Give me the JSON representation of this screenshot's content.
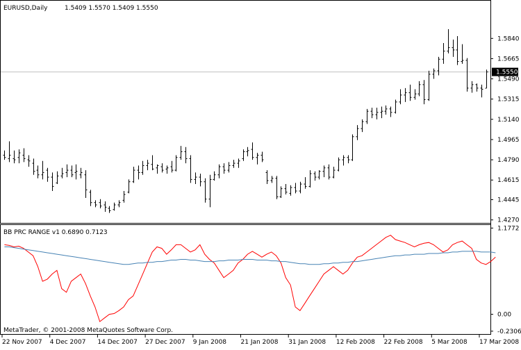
{
  "header": {
    "symbol_label": "EURUSD,Daily",
    "ohlc_values": "1.5409 1.5570 1.5409 1.5550"
  },
  "indicator": {
    "label": "BB PRC RANGE v1 0.6890 0.7123"
  },
  "footer": {
    "copyright": "MetaTrader, © 2001-2008 MetaQuotes Software Corp."
  },
  "colors": {
    "background": "#ffffff",
    "bars": "#000000",
    "grid_line": "#c0c0c0",
    "indicator_main": "#ff0000",
    "indicator_signal": "#4682b4",
    "current_price_bg": "#000000",
    "current_price_text": "#ffffff"
  },
  "chart_data": [
    {
      "type": "ohlc",
      "symbol": "EURUSD",
      "timeframe": "Daily",
      "current_price": 1.555,
      "ylim": [
        1.425,
        1.61
      ],
      "yticks": [
        "1.5840",
        "1.5665",
        "1.5490",
        "1.5315",
        "1.5140",
        "1.4965",
        "1.4790",
        "1.4615",
        "1.4445",
        "1.4270"
      ],
      "xticks": [
        "22 Nov 2007",
        "4 Dec 2007",
        "14 Dec 2007",
        "27 Dec 2007",
        "9 Jan 2008",
        "21 Jan 2008",
        "31 Jan 2008",
        "12 Feb 2008",
        "22 Feb 2008",
        "5 Mar 2008",
        "17 Mar 2008"
      ],
      "bars": [
        {
          "o": 1.483,
          "h": 1.487,
          "l": 1.479,
          "c": 1.481
        },
        {
          "o": 1.48,
          "h": 1.495,
          "l": 1.477,
          "c": 1.483
        },
        {
          "o": 1.48,
          "h": 1.487,
          "l": 1.476,
          "c": 1.479
        },
        {
          "o": 1.481,
          "h": 1.488,
          "l": 1.476,
          "c": 1.485
        },
        {
          "o": 1.483,
          "h": 1.489,
          "l": 1.477,
          "c": 1.48
        },
        {
          "o": 1.479,
          "h": 1.483,
          "l": 1.473,
          "c": 1.478
        },
        {
          "o": 1.476,
          "h": 1.48,
          "l": 1.466,
          "c": 1.469
        },
        {
          "o": 1.47,
          "h": 1.474,
          "l": 1.463,
          "c": 1.466
        },
        {
          "o": 1.466,
          "h": 1.478,
          "l": 1.462,
          "c": 1.468
        },
        {
          "o": 1.47,
          "h": 1.472,
          "l": 1.46,
          "c": 1.464
        },
        {
          "o": 1.464,
          "h": 1.468,
          "l": 1.452,
          "c": 1.456
        },
        {
          "o": 1.459,
          "h": 1.469,
          "l": 1.458,
          "c": 1.465
        },
        {
          "o": 1.465,
          "h": 1.472,
          "l": 1.463,
          "c": 1.467
        },
        {
          "o": 1.468,
          "h": 1.475,
          "l": 1.464,
          "c": 1.47
        },
        {
          "o": 1.47,
          "h": 1.474,
          "l": 1.464,
          "c": 1.466
        },
        {
          "o": 1.468,
          "h": 1.475,
          "l": 1.462,
          "c": 1.469
        },
        {
          "o": 1.466,
          "h": 1.472,
          "l": 1.463,
          "c": 1.468
        },
        {
          "o": 1.466,
          "h": 1.47,
          "l": 1.446,
          "c": 1.453
        },
        {
          "o": 1.451,
          "h": 1.453,
          "l": 1.439,
          "c": 1.442
        },
        {
          "o": 1.442,
          "h": 1.444,
          "l": 1.438,
          "c": 1.44
        },
        {
          "o": 1.442,
          "h": 1.445,
          "l": 1.437,
          "c": 1.439
        },
        {
          "o": 1.44,
          "h": 1.443,
          "l": 1.434,
          "c": 1.438
        },
        {
          "o": 1.437,
          "h": 1.439,
          "l": 1.433,
          "c": 1.435
        },
        {
          "o": 1.436,
          "h": 1.442,
          "l": 1.435,
          "c": 1.44
        },
        {
          "o": 1.44,
          "h": 1.444,
          "l": 1.438,
          "c": 1.442
        },
        {
          "o": 1.444,
          "h": 1.452,
          "l": 1.442,
          "c": 1.449
        },
        {
          "o": 1.451,
          "h": 1.462,
          "l": 1.45,
          "c": 1.46
        },
        {
          "o": 1.46,
          "h": 1.473,
          "l": 1.459,
          "c": 1.47
        },
        {
          "o": 1.47,
          "h": 1.474,
          "l": 1.462,
          "c": 1.468
        },
        {
          "o": 1.468,
          "h": 1.478,
          "l": 1.466,
          "c": 1.474
        },
        {
          "o": 1.474,
          "h": 1.479,
          "l": 1.47,
          "c": 1.476
        },
        {
          "o": 1.475,
          "h": 1.483,
          "l": 1.47,
          "c": 1.471
        },
        {
          "o": 1.472,
          "h": 1.475,
          "l": 1.467,
          "c": 1.474
        },
        {
          "o": 1.473,
          "h": 1.476,
          "l": 1.468,
          "c": 1.47
        },
        {
          "o": 1.471,
          "h": 1.474,
          "l": 1.467,
          "c": 1.472
        },
        {
          "o": 1.473,
          "h": 1.478,
          "l": 1.468,
          "c": 1.47
        },
        {
          "o": 1.47,
          "h": 1.483,
          "l": 1.469,
          "c": 1.481
        },
        {
          "o": 1.481,
          "h": 1.491,
          "l": 1.479,
          "c": 1.486
        },
        {
          "o": 1.486,
          "h": 1.49,
          "l": 1.476,
          "c": 1.48
        },
        {
          "o": 1.48,
          "h": 1.483,
          "l": 1.459,
          "c": 1.462
        },
        {
          "o": 1.462,
          "h": 1.468,
          "l": 1.458,
          "c": 1.464
        },
        {
          "o": 1.464,
          "h": 1.467,
          "l": 1.456,
          "c": 1.46
        },
        {
          "o": 1.46,
          "h": 1.463,
          "l": 1.442,
          "c": 1.445
        },
        {
          "o": 1.445,
          "h": 1.466,
          "l": 1.438,
          "c": 1.462
        },
        {
          "o": 1.462,
          "h": 1.469,
          "l": 1.461,
          "c": 1.466
        },
        {
          "o": 1.466,
          "h": 1.475,
          "l": 1.463,
          "c": 1.473
        },
        {
          "o": 1.473,
          "h": 1.476,
          "l": 1.467,
          "c": 1.47
        },
        {
          "o": 1.47,
          "h": 1.477,
          "l": 1.468,
          "c": 1.474
        },
        {
          "o": 1.474,
          "h": 1.479,
          "l": 1.472,
          "c": 1.476
        },
        {
          "o": 1.476,
          "h": 1.48,
          "l": 1.472,
          "c": 1.478
        },
        {
          "o": 1.48,
          "h": 1.488,
          "l": 1.478,
          "c": 1.486
        },
        {
          "o": 1.486,
          "h": 1.49,
          "l": 1.482,
          "c": 1.487
        },
        {
          "o": 1.488,
          "h": 1.494,
          "l": 1.479,
          "c": 1.481
        },
        {
          "o": 1.481,
          "h": 1.485,
          "l": 1.475,
          "c": 1.483
        },
        {
          "o": 1.483,
          "h": 1.486,
          "l": 1.477,
          "c": 1.479
        },
        {
          "o": 1.468,
          "h": 1.47,
          "l": 1.458,
          "c": 1.461
        },
        {
          "o": 1.461,
          "h": 1.465,
          "l": 1.459,
          "c": 1.463
        },
        {
          "o": 1.463,
          "h": 1.465,
          "l": 1.445,
          "c": 1.447
        },
        {
          "o": 1.447,
          "h": 1.456,
          "l": 1.446,
          "c": 1.454
        },
        {
          "o": 1.454,
          "h": 1.458,
          "l": 1.449,
          "c": 1.451
        },
        {
          "o": 1.45,
          "h": 1.457,
          "l": 1.448,
          "c": 1.455
        },
        {
          "o": 1.455,
          "h": 1.459,
          "l": 1.45,
          "c": 1.452
        },
        {
          "o": 1.452,
          "h": 1.46,
          "l": 1.45,
          "c": 1.458
        },
        {
          "o": 1.458,
          "h": 1.464,
          "l": 1.454,
          "c": 1.456
        },
        {
          "o": 1.456,
          "h": 1.47,
          "l": 1.455,
          "c": 1.467
        },
        {
          "o": 1.467,
          "h": 1.469,
          "l": 1.461,
          "c": 1.464
        },
        {
          "o": 1.464,
          "h": 1.47,
          "l": 1.462,
          "c": 1.469
        },
        {
          "o": 1.469,
          "h": 1.474,
          "l": 1.464,
          "c": 1.472
        },
        {
          "o": 1.472,
          "h": 1.475,
          "l": 1.462,
          "c": 1.464
        },
        {
          "o": 1.464,
          "h": 1.473,
          "l": 1.463,
          "c": 1.47
        },
        {
          "o": 1.47,
          "h": 1.481,
          "l": 1.469,
          "c": 1.479
        },
        {
          "o": 1.479,
          "h": 1.483,
          "l": 1.474,
          "c": 1.481
        },
        {
          "o": 1.481,
          "h": 1.483,
          "l": 1.476,
          "c": 1.479
        },
        {
          "o": 1.479,
          "h": 1.501,
          "l": 1.478,
          "c": 1.499
        },
        {
          "o": 1.499,
          "h": 1.509,
          "l": 1.496,
          "c": 1.506
        },
        {
          "o": 1.506,
          "h": 1.514,
          "l": 1.503,
          "c": 1.512
        },
        {
          "o": 1.512,
          "h": 1.523,
          "l": 1.51,
          "c": 1.521
        },
        {
          "o": 1.521,
          "h": 1.524,
          "l": 1.515,
          "c": 1.518
        },
        {
          "o": 1.518,
          "h": 1.524,
          "l": 1.514,
          "c": 1.52
        },
        {
          "o": 1.52,
          "h": 1.525,
          "l": 1.515,
          "c": 1.521
        },
        {
          "o": 1.521,
          "h": 1.526,
          "l": 1.518,
          "c": 1.523
        },
        {
          "o": 1.523,
          "h": 1.525,
          "l": 1.516,
          "c": 1.52
        },
        {
          "o": 1.52,
          "h": 1.531,
          "l": 1.519,
          "c": 1.529
        },
        {
          "o": 1.529,
          "h": 1.54,
          "l": 1.527,
          "c": 1.535
        },
        {
          "o": 1.535,
          "h": 1.541,
          "l": 1.529,
          "c": 1.537
        },
        {
          "o": 1.537,
          "h": 1.544,
          "l": 1.53,
          "c": 1.533
        },
        {
          "o": 1.533,
          "h": 1.54,
          "l": 1.531,
          "c": 1.536
        },
        {
          "o": 1.536,
          "h": 1.547,
          "l": 1.534,
          "c": 1.544
        },
        {
          "o": 1.544,
          "h": 1.548,
          "l": 1.527,
          "c": 1.531
        },
        {
          "o": 1.531,
          "h": 1.556,
          "l": 1.53,
          "c": 1.553
        },
        {
          "o": 1.553,
          "h": 1.558,
          "l": 1.549,
          "c": 1.556
        },
        {
          "o": 1.556,
          "h": 1.568,
          "l": 1.552,
          "c": 1.566
        },
        {
          "o": 1.566,
          "h": 1.58,
          "l": 1.562,
          "c": 1.573
        },
        {
          "o": 1.573,
          "h": 1.592,
          "l": 1.571,
          "c": 1.576
        },
        {
          "o": 1.576,
          "h": 1.583,
          "l": 1.568,
          "c": 1.574
        },
        {
          "o": 1.574,
          "h": 1.586,
          "l": 1.561,
          "c": 1.564
        },
        {
          "o": 1.564,
          "h": 1.579,
          "l": 1.562,
          "c": 1.565
        },
        {
          "o": 1.565,
          "h": 1.567,
          "l": 1.538,
          "c": 1.541
        },
        {
          "o": 1.541,
          "h": 1.547,
          "l": 1.537,
          "c": 1.544
        },
        {
          "o": 1.544,
          "h": 1.545,
          "l": 1.538,
          "c": 1.541
        },
        {
          "o": 1.541,
          "h": 1.544,
          "l": 1.533,
          "c": 1.54
        },
        {
          "o": 1.5409,
          "h": 1.557,
          "l": 1.5409,
          "c": 1.555
        }
      ]
    },
    {
      "type": "line",
      "name": "BB PRC RANGE v1",
      "ylim": [
        -0.26,
        1.2
      ],
      "yticks": [
        "1.1772",
        "0.00",
        "-0.2306"
      ],
      "series": [
        {
          "values": [
            0.95,
            0.94,
            0.92,
            0.93,
            0.9,
            0.85,
            0.8,
            0.65,
            0.45,
            0.48,
            0.55,
            0.6,
            0.35,
            0.3,
            0.45,
            0.5,
            0.55,
            0.42,
            0.25,
            0.1,
            -0.1,
            -0.05,
            0.0,
            0.01,
            0.05,
            0.1,
            0.2,
            0.25,
            0.4,
            0.55,
            0.7,
            0.85,
            0.92,
            0.9,
            0.82,
            0.88,
            0.95,
            0.95,
            0.9,
            0.85,
            0.88,
            0.95,
            0.82,
            0.75,
            0.7,
            0.6,
            0.5,
            0.55,
            0.6,
            0.7,
            0.75,
            0.82,
            0.86,
            0.82,
            0.78,
            0.82,
            0.85,
            0.8,
            0.7,
            0.5,
            0.4,
            0.1,
            0.05,
            0.15,
            0.25,
            0.35,
            0.45,
            0.55,
            0.6,
            0.65,
            0.6,
            0.55,
            0.6,
            0.7,
            0.78,
            0.8,
            0.85,
            0.9,
            0.95,
            1.0,
            1.05,
            1.08,
            1.02,
            1.0,
            0.98,
            0.95,
            0.92,
            0.95,
            0.97,
            0.98,
            0.95,
            0.9,
            0.85,
            0.88,
            0.95,
            0.98,
            1.0,
            0.95,
            0.9,
            0.75,
            0.7,
            0.68,
            0.72,
            0.78
          ]
        },
        {
          "values": [
            0.92,
            0.92,
            0.91,
            0.9,
            0.89,
            0.88,
            0.87,
            0.86,
            0.85,
            0.84,
            0.83,
            0.82,
            0.81,
            0.8,
            0.79,
            0.78,
            0.77,
            0.76,
            0.75,
            0.74,
            0.73,
            0.72,
            0.71,
            0.7,
            0.69,
            0.68,
            0.68,
            0.69,
            0.7,
            0.7,
            0.71,
            0.71,
            0.72,
            0.72,
            0.73,
            0.74,
            0.74,
            0.75,
            0.75,
            0.74,
            0.74,
            0.73,
            0.72,
            0.72,
            0.72,
            0.73,
            0.73,
            0.74,
            0.74,
            0.74,
            0.75,
            0.75,
            0.75,
            0.74,
            0.74,
            0.74,
            0.73,
            0.73,
            0.72,
            0.72,
            0.71,
            0.7,
            0.69,
            0.69,
            0.68,
            0.68,
            0.68,
            0.69,
            0.69,
            0.7,
            0.7,
            0.71,
            0.71,
            0.72,
            0.72,
            0.73,
            0.74,
            0.75,
            0.76,
            0.77,
            0.78,
            0.79,
            0.8,
            0.8,
            0.81,
            0.81,
            0.82,
            0.82,
            0.82,
            0.83,
            0.83,
            0.83,
            0.84,
            0.84,
            0.85,
            0.85,
            0.86,
            0.86,
            0.86,
            0.86,
            0.85,
            0.85,
            0.85,
            0.84
          ]
        }
      ]
    }
  ]
}
